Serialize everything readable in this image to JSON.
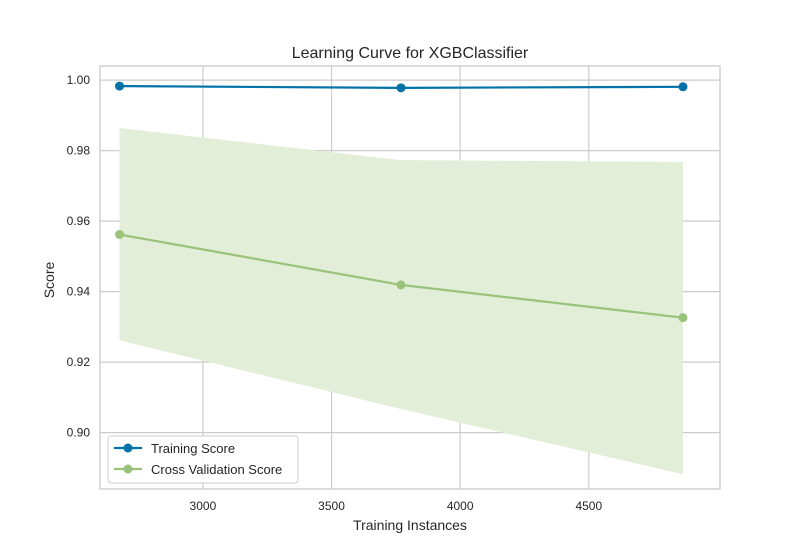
{
  "chart_data": {
    "type": "line",
    "title": "Learning Curve for XGBClassifier",
    "xlabel": "Training Instances",
    "ylabel": "Score",
    "xlim": [
      2600,
      5010
    ],
    "ylim": [
      0.884,
      1.004
    ],
    "xticks": [
      3000,
      3500,
      4000,
      4500
    ],
    "xtick_labels": [
      "3000",
      "3500",
      "4000",
      "4500"
    ],
    "yticks": [
      0.9,
      0.92,
      0.94,
      0.96,
      0.98,
      1.0
    ],
    "ytick_labels": [
      "0.90",
      "0.92",
      "0.94",
      "0.96",
      "0.98",
      "1.00"
    ],
    "grid": true,
    "legend_position": "bottom-left",
    "x": [
      2676,
      3770,
      4866
    ],
    "series": [
      {
        "name": "Training Score",
        "color": "#0072a8",
        "values": [
          0.9983,
          0.9978,
          0.9981
        ],
        "band_lower": [
          0.9983,
          0.9978,
          0.9981
        ],
        "band_upper": [
          0.9983,
          0.9978,
          0.9981
        ]
      },
      {
        "name": "Cross Validation Score",
        "color": "#9bc27a",
        "band_color": "#e3eed8",
        "values": [
          0.9562,
          0.9419,
          0.9326
        ],
        "band_lower": [
          0.9262,
          0.9067,
          0.8882
        ],
        "band_upper": [
          0.9864,
          0.9773,
          0.9768
        ]
      }
    ]
  }
}
